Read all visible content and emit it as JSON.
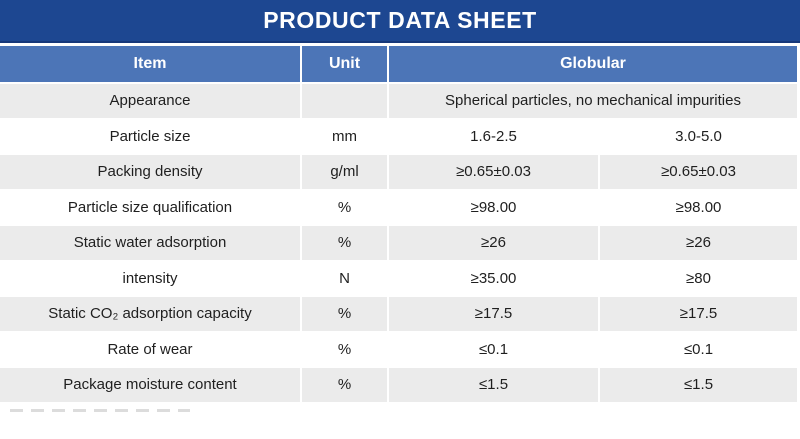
{
  "title": "PRODUCT DATA SHEET",
  "colors": {
    "title_bg": "#1d4791",
    "title_border": "#16387a",
    "header_bg": "#4c75b7",
    "header_text": "#ffffff",
    "alt_row_bg": "#ebebeb",
    "text": "#1f1f1f"
  },
  "header": {
    "item": "Item",
    "unit": "Unit",
    "product": "Globular"
  },
  "table": {
    "rows": [
      {
        "item": "Appearance",
        "unit": "",
        "merged": "Spherical particles, no mechanical impurities"
      },
      {
        "item": "Particle size",
        "unit": "mm",
        "v1": "1.6-2.5",
        "v2": "3.0-5.0"
      },
      {
        "item": "Packing density",
        "unit": "g/ml",
        "v1": "≥0.65±0.03",
        "v2": "≥0.65±0.03"
      },
      {
        "item": "Particle size qualification",
        "unit": "%",
        "v1": "≥98.00",
        "v2": "≥98.00"
      },
      {
        "item": "Static water adsorption",
        "unit": "%",
        "v1": "≥26",
        "v2": "≥26"
      },
      {
        "item": "intensity",
        "unit": "N",
        "v1": "≥35.00",
        "v2": "≥80"
      },
      {
        "item": "Static CO₂ adsorption capacity",
        "unit": "%",
        "v1": "≥17.5",
        "v2": "≥17.5"
      },
      {
        "item": "Rate of wear",
        "unit": "%",
        "v1": "≤0.1",
        "v2": "≤0.1"
      },
      {
        "item": "Package moisture content",
        "unit": "%",
        "v1": "≤1.5",
        "v2": "≤1.5"
      }
    ]
  }
}
